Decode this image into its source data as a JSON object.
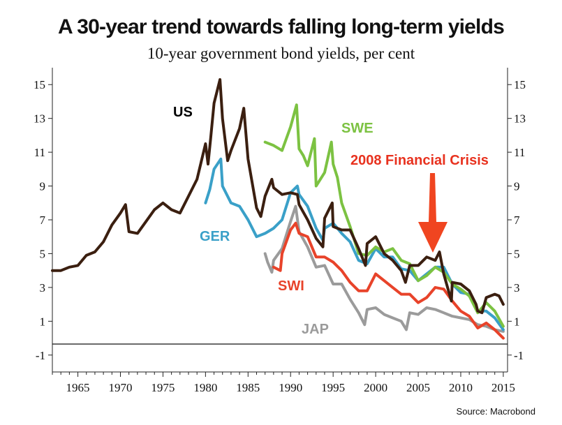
{
  "title": "A 30-year trend towards falling long-term yields",
  "subtitle": "10-year government bond yields, per cent",
  "source": "Source: Macrobond",
  "chart_data": {
    "type": "line",
    "xlim": [
      1962,
      2015.5
    ],
    "ylim": [
      -2,
      16
    ],
    "x_ticks": [
      "1965",
      "1970",
      "1975",
      "1980",
      "1985",
      "1990",
      "1995",
      "2000",
      "2005",
      "2010",
      "2015"
    ],
    "y_ticks": [
      "-1",
      "1",
      "3",
      "5",
      "7",
      "9",
      "11",
      "13",
      "15"
    ],
    "grid": false,
    "series": [
      {
        "name": "US",
        "color": "#3b1f10",
        "x": [
          1962,
          1963,
          1964,
          1965,
          1966,
          1967,
          1968,
          1969,
          1970,
          1970.6,
          1971,
          1972,
          1973,
          1974,
          1975,
          1976,
          1977,
          1978,
          1979,
          1980,
          1980.3,
          1980.6,
          1981,
          1981.7,
          1982,
          1982.6,
          1983,
          1984,
          1984.5,
          1985,
          1986,
          1986.5,
          1987,
          1987.8,
          1988,
          1989,
          1990,
          1990.8,
          1991,
          1992,
          1993,
          1993.8,
          1994,
          1994.9,
          1995,
          1996,
          1997,
          1998,
          1998.8,
          1999,
          2000,
          2001,
          2002,
          2003,
          2003.5,
          2004,
          2005,
          2006,
          2007,
          2007.5,
          2008,
          2008.9,
          2009,
          2010,
          2011,
          2011.8,
          2012,
          2012.5,
          2013,
          2014,
          2014.5,
          2015
        ],
        "values": [
          4.0,
          4.0,
          4.2,
          4.3,
          4.9,
          5.1,
          5.7,
          6.7,
          7.4,
          7.9,
          6.3,
          6.2,
          6.9,
          7.6,
          8.0,
          7.6,
          7.4,
          8.4,
          9.4,
          11.5,
          10.3,
          11.8,
          13.9,
          15.3,
          13.0,
          10.5,
          11.1,
          12.4,
          13.6,
          10.6,
          7.7,
          7.2,
          8.4,
          9.4,
          8.9,
          8.5,
          8.6,
          8.5,
          7.9,
          7.0,
          5.9,
          5.4,
          7.1,
          8.0,
          6.6,
          6.4,
          6.4,
          5.3,
          4.3,
          5.6,
          6.0,
          5.0,
          4.6,
          4.0,
          3.3,
          4.3,
          4.3,
          4.8,
          4.6,
          5.1,
          3.8,
          2.2,
          3.3,
          3.2,
          2.8,
          2.0,
          1.6,
          1.5,
          2.4,
          2.6,
          2.5,
          2.0
        ]
      },
      {
        "name": "GER",
        "color": "#3aa0c8",
        "x": [
          1980,
          1980.5,
          1981,
          1981.8,
          1982,
          1983,
          1984,
          1985,
          1986,
          1987,
          1988,
          1989,
          1990,
          1990.8,
          1991,
          1992,
          1993,
          1993.8,
          1994,
          1995,
          1996,
          1997,
          1998,
          1999,
          2000,
          2001,
          2002,
          2003,
          2004,
          2005,
          2006,
          2007,
          2008,
          2009,
          2010,
          2011,
          2012,
          2013,
          2014,
          2015
        ],
        "values": [
          8.0,
          8.8,
          10.0,
          10.6,
          9.0,
          8.0,
          7.8,
          7.0,
          6.0,
          6.2,
          6.5,
          7.0,
          8.6,
          9.0,
          8.5,
          7.8,
          6.5,
          5.8,
          6.5,
          6.8,
          6.2,
          5.7,
          4.6,
          4.4,
          5.3,
          4.8,
          4.8,
          4.1,
          4.0,
          3.4,
          3.8,
          4.2,
          4.2,
          3.2,
          2.7,
          2.6,
          1.6,
          1.6,
          1.2,
          0.5
        ]
      },
      {
        "name": "SWE",
        "color": "#7cc242",
        "x": [
          1987,
          1988,
          1989,
          1990,
          1990.7,
          1991,
          1991.5,
          1992,
          1992.8,
          1993,
          1994,
          1994.8,
          1995,
          1995.5,
          1996,
          1997,
          1998,
          1999,
          2000,
          2001,
          2002,
          2003,
          2004,
          2005,
          2006,
          2007,
          2008,
          2009,
          2010,
          2011,
          2012,
          2013,
          2014,
          2015
        ],
        "values": [
          11.6,
          11.4,
          11.1,
          12.5,
          13.8,
          11.2,
          10.8,
          10.2,
          11.8,
          9.0,
          9.8,
          11.6,
          10.3,
          9.5,
          8.0,
          6.6,
          5.0,
          4.9,
          5.4,
          5.1,
          5.3,
          4.6,
          4.4,
          3.4,
          3.7,
          4.2,
          3.9,
          3.2,
          2.9,
          2.5,
          1.5,
          2.1,
          1.6,
          0.7
        ]
      },
      {
        "name": "SWI",
        "color": "#e8432a",
        "x": [
          1988,
          1988.8,
          1989,
          1990,
          1990.6,
          1991,
          1992,
          1993,
          1994,
          1995,
          1996,
          1997,
          1998,
          1999,
          2000,
          2001,
          2002,
          2003,
          2004,
          2005,
          2006,
          2007,
          2008,
          2009,
          2010,
          2011,
          2012,
          2013,
          2014,
          2015
        ],
        "values": [
          4.2,
          4.0,
          5.0,
          6.4,
          6.8,
          6.2,
          6.0,
          4.8,
          4.8,
          4.5,
          4.0,
          3.3,
          2.8,
          2.8,
          3.8,
          3.4,
          3.0,
          2.6,
          2.6,
          2.1,
          2.4,
          3.0,
          2.9,
          2.2,
          1.6,
          1.3,
          0.6,
          0.9,
          0.5,
          0.0
        ]
      },
      {
        "name": "JAP",
        "color": "#9b9b9b",
        "x": [
          1987,
          1987.3,
          1987.8,
          1988,
          1989,
          1990,
          1990.6,
          1991,
          1992,
          1993,
          1994,
          1995,
          1996,
          1997,
          1998,
          1998.7,
          1999,
          2000,
          2001,
          2002,
          2003,
          2003.6,
          2004,
          2005,
          2006,
          2007,
          2008,
          2009,
          2010,
          2011,
          2012,
          2013,
          2014,
          2015
        ],
        "values": [
          5.0,
          4.5,
          3.9,
          4.6,
          5.3,
          6.9,
          7.8,
          6.3,
          5.4,
          4.2,
          4.3,
          3.2,
          3.2,
          2.3,
          1.5,
          0.8,
          1.7,
          1.8,
          1.4,
          1.2,
          1.0,
          0.5,
          1.5,
          1.4,
          1.8,
          1.7,
          1.5,
          1.3,
          1.2,
          1.1,
          0.8,
          0.7,
          0.5,
          0.4
        ]
      }
    ],
    "annotation": "2008 Financial Crisis"
  }
}
